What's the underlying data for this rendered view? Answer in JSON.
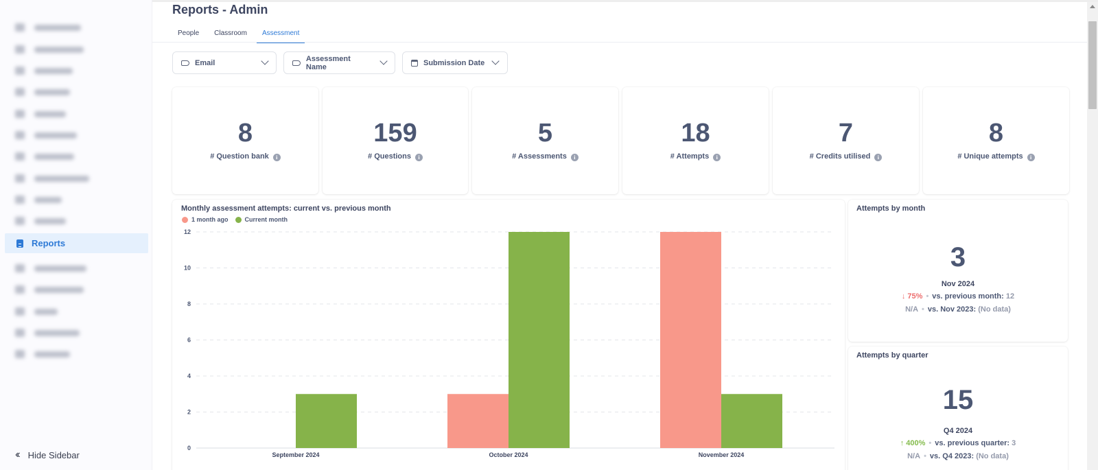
{
  "page": {
    "title": "Reports - Admin"
  },
  "tabs": [
    "People",
    "Classroom",
    "Assessment"
  ],
  "active_tab": "Assessment",
  "sidebar": {
    "active_item": "Reports",
    "hide_label": "Hide Sidebar"
  },
  "filters": {
    "email": "Email",
    "assessment_name": "Assessment Name",
    "submission_date": "Submission Date"
  },
  "stats": [
    {
      "value": "8",
      "label": "# Question bank"
    },
    {
      "value": "159",
      "label": "# Questions"
    },
    {
      "value": "5",
      "label": "# Assessments"
    },
    {
      "value": "18",
      "label": "# Attempts"
    },
    {
      "value": "7",
      "label": "# Credits utilised"
    },
    {
      "value": "8",
      "label": "# Unique attempts"
    }
  ],
  "colors": {
    "previous": "#f8988a",
    "current": "#86b34a",
    "accent": "#2e7ad6"
  },
  "chart_data": {
    "type": "bar",
    "title": "Monthly assessment attempts: current vs. previous month",
    "categories": [
      "September 2024",
      "October 2024",
      "November 2024"
    ],
    "series": [
      {
        "name": "1 month ago",
        "values": [
          0,
          3,
          12
        ]
      },
      {
        "name": "Current month",
        "values": [
          3,
          12,
          3
        ]
      }
    ],
    "yticks": [
      "0",
      "2",
      "4",
      "6",
      "8",
      "10",
      "12"
    ],
    "ylim": [
      0,
      12
    ],
    "legend": "top-left",
    "grid": true
  },
  "by_month": {
    "title": "Attempts by month",
    "value": "3",
    "period": "Nov 2024",
    "change_arrow": "↓",
    "change": "75%",
    "vs_prev_label": "vs. previous month:",
    "vs_prev_value": "12",
    "na": "N/A",
    "vs_year_label": "vs. Nov 2023:",
    "vs_year_value": "(No data)"
  },
  "by_quarter": {
    "title": "Attempts by quarter",
    "value": "15",
    "period": "Q4 2024",
    "change_arrow": "↑",
    "change": "400%",
    "vs_prev_label": "vs. previous quarter:",
    "vs_prev_value": "3",
    "na": "N/A",
    "vs_year_label": "vs. Q4 2023:",
    "vs_year_value": "(No data)"
  }
}
